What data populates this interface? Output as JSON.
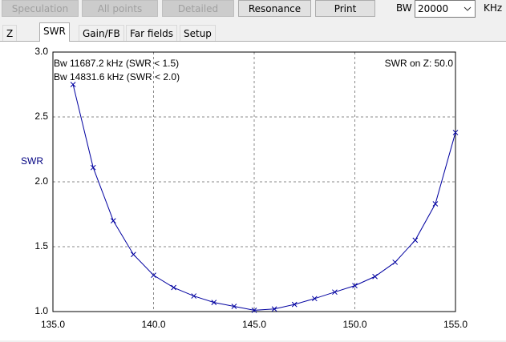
{
  "toolbar": {
    "buttons": [
      "Speculation",
      "All points",
      "Detailed",
      "Resonance",
      "Print"
    ],
    "bw_label": "BW",
    "bw_value": "20000",
    "bw_unit": "KHz"
  },
  "tabs": [
    "Z",
    "SWR",
    "Gain/FB",
    "Far fields",
    "Setup"
  ],
  "chart_data": {
    "type": "line",
    "ylabel": "SWR",
    "annotations": [
      "Bw 11687.2 kHz (SWR < 1.5)",
      "Bw 14831.6 kHz (SWR < 2.0)",
      "SWR on Z: 50.0"
    ],
    "x": [
      136,
      137,
      138,
      139,
      140,
      141,
      142,
      143,
      144,
      145,
      146,
      147,
      148,
      149,
      150,
      151,
      152,
      153,
      154,
      155
    ],
    "values": [
      2.75,
      2.11,
      1.7,
      1.44,
      1.28,
      1.185,
      1.12,
      1.07,
      1.04,
      1.01,
      1.02,
      1.055,
      1.1,
      1.15,
      1.2,
      1.27,
      1.38,
      1.55,
      1.83,
      2.38
    ],
    "color": "#0000a0",
    "xlim": [
      135,
      155
    ],
    "xticks": [
      {
        "value": 135,
        "label": "135.0"
      },
      {
        "value": 140,
        "label": "140.0"
      },
      {
        "value": 145,
        "label": "145.0"
      },
      {
        "value": 150,
        "label": "150.0"
      },
      {
        "value": 155,
        "label": "155.0"
      }
    ],
    "ylim": [
      1,
      3
    ],
    "yticks": [
      {
        "value": 1,
        "label": "1.0"
      },
      {
        "value": 1.5,
        "label": "1.5"
      },
      {
        "value": 2,
        "label": "2.0"
      },
      {
        "value": 2.5,
        "label": "2.5"
      },
      {
        "value": 3,
        "label": "3.0"
      }
    ],
    "grid": true
  }
}
